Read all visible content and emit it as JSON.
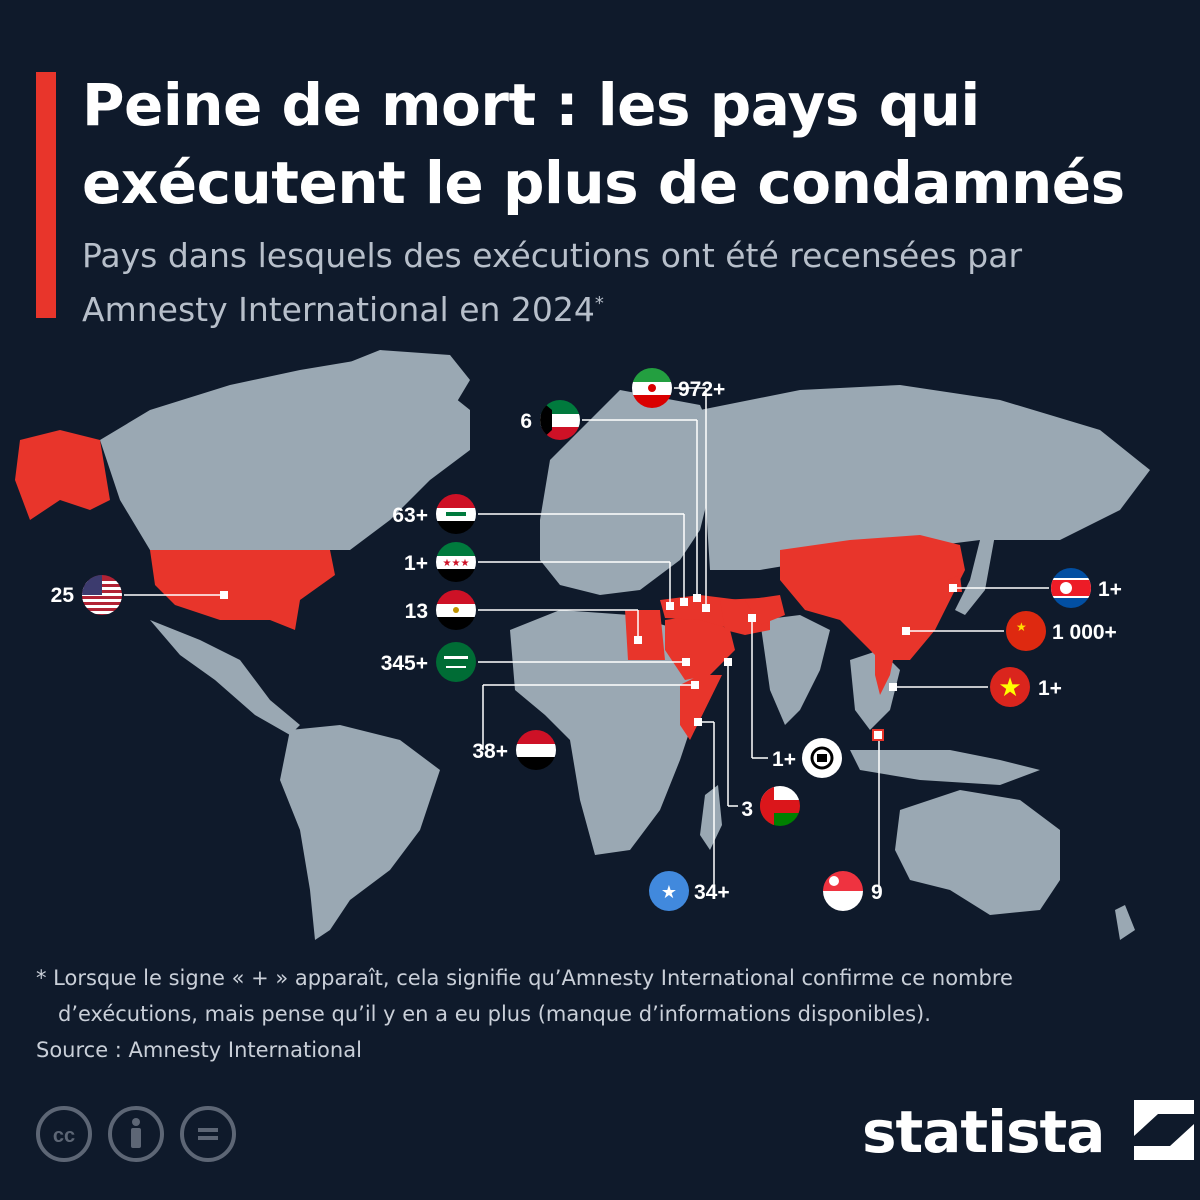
{
  "header": {
    "title": "Peine de mort : les pays qui exécutent le plus de condamnés",
    "subtitle": "Pays dans lesquels des exécutions ont été recensées par Amnesty International en 2024",
    "subtitle_mark": "*"
  },
  "colors": {
    "background": "#0f1a2b",
    "land": "#9aa8b3",
    "executing_country": "#e8352b",
    "accent_bar": "#e8352b"
  },
  "map": {
    "countries": [
      {
        "name": "États-Unis",
        "value": "25",
        "flag": "us-flag-icon"
      },
      {
        "name": "Koweït",
        "value": "6",
        "flag": "kuwait-flag-icon"
      },
      {
        "name": "Iran",
        "value": "972+",
        "flag": "iran-flag-icon"
      },
      {
        "name": "Irak",
        "value": "63+",
        "flag": "iraq-flag-icon"
      },
      {
        "name": "Syrie",
        "value": "1+",
        "flag": "syria-flag-icon"
      },
      {
        "name": "Égypte",
        "value": "13",
        "flag": "egypt-flag-icon"
      },
      {
        "name": "Arabie saoudite",
        "value": "345+",
        "flag": "saudi-arabia-flag-icon"
      },
      {
        "name": "Yémen",
        "value": "38+",
        "flag": "yemen-flag-icon"
      },
      {
        "name": "Afghanistan",
        "value": "1+",
        "flag": "afghanistan-flag-icon"
      },
      {
        "name": "Oman",
        "value": "3",
        "flag": "oman-flag-icon"
      },
      {
        "name": "Somalie",
        "value": "34+",
        "flag": "somalia-flag-icon"
      },
      {
        "name": "Singapour",
        "value": "9",
        "flag": "singapore-flag-icon"
      },
      {
        "name": "Corée du Nord",
        "value": "1+",
        "flag": "north-korea-flag-icon"
      },
      {
        "name": "Chine",
        "value": "1 000+",
        "flag": "china-flag-icon"
      },
      {
        "name": "Vietnam",
        "value": "1+",
        "flag": "vietnam-flag-icon"
      }
    ]
  },
  "footer": {
    "footnote": "* Lorsque le signe « + » apparaît, cela signifie qu’Amnesty International confirme ce nombre d’exécutions, mais pense qu’il y en a eu plus (manque d’informations disponibles).",
    "source": "Source : Amnesty International",
    "logo": "statista",
    "license_icons": [
      "creative-commons-icon",
      "attribution-icon",
      "no-derivatives-icon"
    ]
  }
}
